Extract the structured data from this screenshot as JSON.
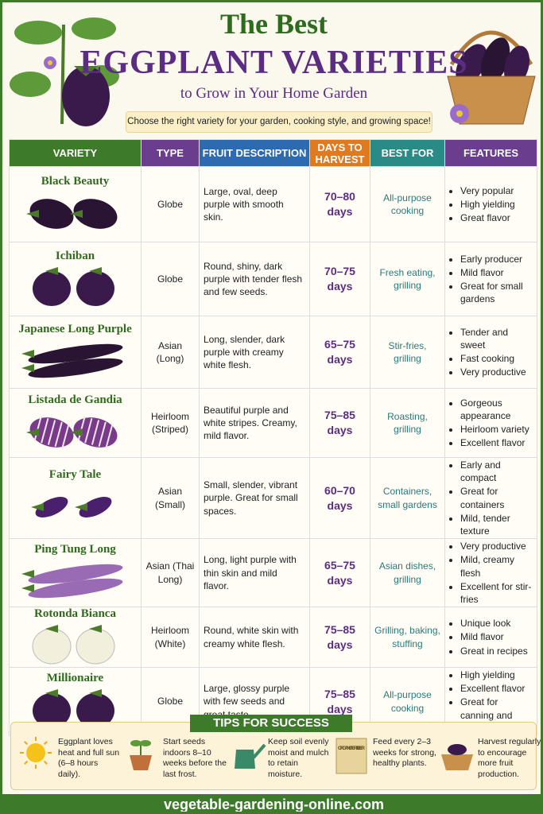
{
  "header": {
    "title_line1": "The Best",
    "title_line2": "EGGPLANT VARIETIES",
    "subtitle": "to Grow in Your Home Garden",
    "tagline": "Choose the right variety for your garden, cooking style, and growing space!"
  },
  "table": {
    "columns": [
      "VARIETY",
      "TYPE",
      "FRUIT DESCRIPTION",
      "DAYS TO HARVEST",
      "BEST FOR",
      "FEATURES"
    ],
    "rows": [
      {
        "variety": "Black Beauty",
        "type": "Globe",
        "description": "Large, oval, deep purple with smooth skin.",
        "days": "70–80 days",
        "best_for": "All-purpose cooking",
        "features": [
          "Very popular",
          "High yielding",
          "Great flavor"
        ]
      },
      {
        "variety": "Ichiban",
        "type": "Globe",
        "description": "Round, shiny, dark purple with tender flesh and few seeds.",
        "days": "70–75 days",
        "best_for": "Fresh eating, grilling",
        "features": [
          "Early producer",
          "Mild flavor",
          "Great for small gardens"
        ]
      },
      {
        "variety": "Japanese Long Purple",
        "type": "Asian (Long)",
        "description": "Long, slender, dark purple with creamy white flesh.",
        "days": "65–75 days",
        "best_for": "Stir-fries, grilling",
        "features": [
          "Tender and sweet",
          "Fast cooking",
          "Very productive"
        ]
      },
      {
        "variety": "Listada de Gandia",
        "type": "Heirloom (Striped)",
        "description": "Beautiful purple and white stripes. Creamy, mild flavor.",
        "days": "75–85 days",
        "best_for": "Roasting, grilling",
        "features": [
          "Gorgeous appearance",
          "Heirloom variety",
          "Excellent flavor"
        ]
      },
      {
        "variety": "Fairy Tale",
        "type": "Asian (Small)",
        "description": "Small, slender, vibrant purple. Great for small spaces.",
        "days": "60–70 days",
        "best_for": "Containers, small gardens",
        "features": [
          "Early and compact",
          "Great for containers",
          "Mild, tender texture"
        ]
      },
      {
        "variety": "Ping Tung Long",
        "type": "Asian (Thai Long)",
        "description": "Long, light purple with thin skin and mild flavor.",
        "days": "65–75 days",
        "best_for": "Asian dishes, grilling",
        "features": [
          "Very productive",
          "Mild, creamy flesh",
          "Excellent for stir-fries"
        ]
      },
      {
        "variety": "Rotonda Bianca",
        "type": "Heirloom (White)",
        "description": "Round, white skin with creamy white flesh.",
        "days": "75–85 days",
        "best_for": "Grilling, baking, stuffing",
        "features": [
          "Unique look",
          "Mild flavor",
          "Great in recipes"
        ]
      },
      {
        "variety": "Millionaire",
        "type": "Globe",
        "description": "Large, glossy purple with few seeds and great taste.",
        "days": "75–85 days",
        "best_for": "All-purpose cooking",
        "features": [
          "High yielding",
          "Excellent flavor",
          "Great for canning and freezing"
        ]
      }
    ]
  },
  "tips": {
    "title": "TIPS FOR SUCCESS",
    "fertilizer_label": "ORGANIC FERTILIZER",
    "items": [
      "Eggplant loves heat and full sun (6–8 hours daily).",
      "Start seeds indoors 8–10 weeks before the last frost.",
      "Keep soil evenly moist and mulch to retain moisture.",
      "Feed every 2–3 weeks for strong, healthy plants.",
      "Harvest regularly to encourage more fruit production."
    ]
  },
  "footer": {
    "url": "vegetable-gardening-online.com"
  }
}
